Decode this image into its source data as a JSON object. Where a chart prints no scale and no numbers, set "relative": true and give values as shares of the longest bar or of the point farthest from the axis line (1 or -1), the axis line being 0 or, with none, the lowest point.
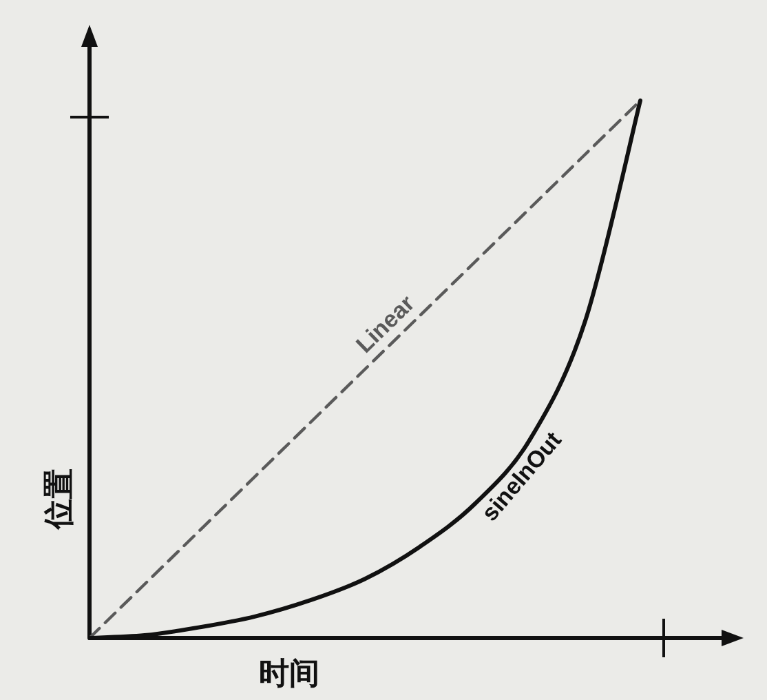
{
  "chart_data": {
    "type": "line",
    "relative": true,
    "xlabel": "时间",
    "ylabel": "位置",
    "categories": [
      null,
      null,
      null,
      null,
      null,
      null,
      null,
      null,
      null,
      null,
      null
    ],
    "series": [
      {
        "name": "Linear",
        "color": "#5a5a5a",
        "line_style": "dashed",
        "values": [
          0,
          0.1,
          0.2,
          0.3,
          0.4,
          0.5,
          0.6,
          0.7,
          0.8,
          0.9,
          1
        ]
      },
      {
        "name": "sineInOut",
        "color": "#111111",
        "line_style": "solid",
        "values": [
          0,
          0.005,
          0.02,
          0.04,
          0.07,
          0.11,
          0.17,
          0.25,
          0.37,
          0.59,
          1
        ]
      }
    ]
  }
}
